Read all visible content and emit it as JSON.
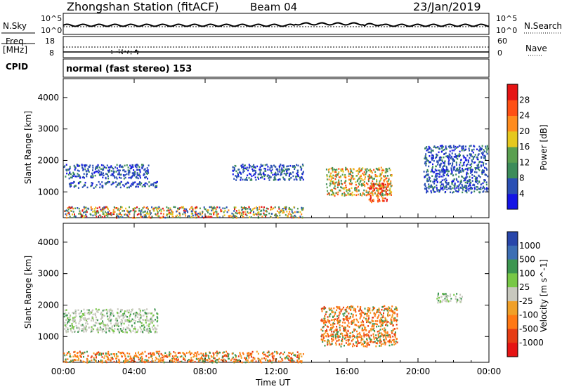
{
  "header": {
    "station": "Zhongshan Station (fitACF)",
    "beam": "Beam 04",
    "date": "23/Jan/2019"
  },
  "top_panels": {
    "nsky_label": "N.Sky",
    "nsearch_label": "N.Search",
    "freq_label_1": "Freq.",
    "freq_label_2": "[MHz]",
    "nave_label": "Nave",
    "cpid_label": "CPID",
    "cpid_value": "normal (fast stereo) 153",
    "left_ticks_nsky": [
      "10^5",
      "10^0"
    ],
    "right_ticks_nsearch": [
      "10^5",
      "10^0"
    ],
    "left_ticks_freq": [
      "18",
      "8"
    ],
    "right_ticks_nave": [
      "60",
      "0"
    ]
  },
  "colors": {
    "power": [
      "#1414e6",
      "#2a4fb4",
      "#3c8c5a",
      "#5aa050",
      "#e6c81e",
      "#ff8c1e",
      "#ff5014",
      "#e61414"
    ],
    "velocity": [
      "#2846aa",
      "#3c6eb4",
      "#3c9650",
      "#78c846",
      "#c8c8be",
      "#f0a028",
      "#ff7814",
      "#e63c14",
      "#e61414"
    ]
  },
  "chart_data": [
    {
      "type": "heatmap",
      "name": "power",
      "xlabel": "",
      "ylabel": "Slant Range [km]",
      "xlim": [
        "00:00",
        "00:00"
      ],
      "ylim": [
        180,
        4600
      ],
      "yticks": [
        "1000",
        "2000",
        "3000",
        "4000"
      ],
      "colorbar": {
        "label": "Power [dB]",
        "ticks": [
          "4",
          "8",
          "12",
          "16",
          "20",
          "24",
          "28"
        ],
        "range": [
          0,
          32
        ]
      },
      "features": [
        {
          "t": [
            0.0,
            4.8
          ],
          "range": [
            1450,
            1900
          ],
          "level": "low"
        },
        {
          "t": [
            0.3,
            5.3
          ],
          "range": [
            1150,
            1350
          ],
          "level": "low"
        },
        {
          "t": [
            0.0,
            13.5
          ],
          "range": [
            200,
            550
          ],
          "level": "mixed"
        },
        {
          "t": [
            9.5,
            13.5
          ],
          "range": [
            1400,
            1900
          ],
          "level": "low"
        },
        {
          "t": [
            14.8,
            18.5
          ],
          "range": [
            900,
            1800
          ],
          "level": "high"
        },
        {
          "t": [
            17.2,
            18.3
          ],
          "range": [
            700,
            1300
          ],
          "level": "max"
        },
        {
          "t": [
            20.3,
            23.9
          ],
          "range": [
            1000,
            2500
          ],
          "level": "low"
        }
      ]
    },
    {
      "type": "heatmap",
      "name": "velocity",
      "xlabel": "Time UT",
      "ylabel": "Slant Range [km]",
      "xticks": [
        "00:00",
        "04:00",
        "08:00",
        "12:00",
        "16:00",
        "20:00",
        "00:00"
      ],
      "ylim": [
        180,
        4600
      ],
      "yticks": [
        "1000",
        "2000",
        "3000",
        "4000"
      ],
      "colorbar": {
        "label": "Velocity [m s^-1]",
        "ticks": [
          "1000",
          "500",
          "100",
          "25",
          "-25",
          "-100",
          "-500",
          "-1000"
        ]
      },
      "features": [
        {
          "t": [
            0.0,
            5.3
          ],
          "range": [
            1150,
            1900
          ],
          "level": "near-zero"
        },
        {
          "t": [
            0.0,
            13.5
          ],
          "range": [
            200,
            550
          ],
          "level": "negative"
        },
        {
          "t": [
            14.5,
            18.8
          ],
          "range": [
            700,
            2000
          ],
          "level": "negative"
        },
        {
          "t": [
            21.0,
            22.5
          ],
          "range": [
            2100,
            2400
          ],
          "level": "near-zero"
        }
      ]
    }
  ]
}
